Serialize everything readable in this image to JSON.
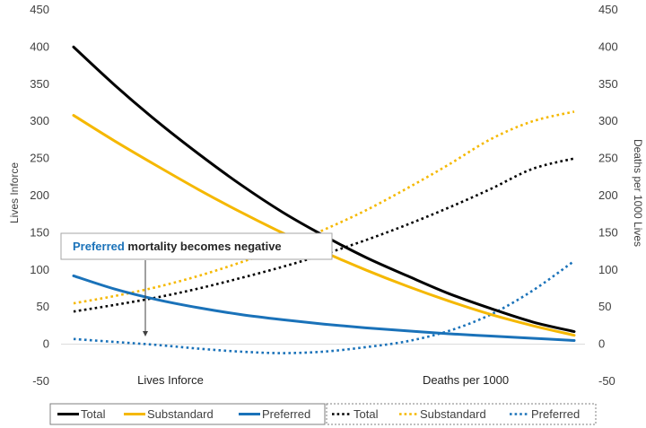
{
  "chart_data": {
    "type": "line",
    "title": "",
    "y_left_label": "Lives Inforce",
    "y_right_label": "Deaths per 1000 Lives",
    "ylim": [
      -50,
      450
    ],
    "yticks": [
      -50,
      0,
      50,
      100,
      150,
      200,
      250,
      300,
      350,
      400,
      450
    ],
    "x_labels": [
      "Lives Inforce",
      "Deaths per 1000"
    ],
    "grid": false,
    "annotation": {
      "highlight": "Preferred",
      "text": " mortality becomes negative"
    },
    "x": [
      0,
      1,
      2,
      3,
      4,
      5,
      6,
      7,
      8,
      9,
      10,
      11,
      12
    ],
    "series": [
      {
        "name": "Total",
        "axis": "left",
        "style": "solid",
        "color": "#000000",
        "values": [
          400,
          348,
          300,
          256,
          215,
          178,
          146,
          117,
          92,
          68,
          48,
          30,
          17
        ]
      },
      {
        "name": "Substandard",
        "axis": "left",
        "style": "solid",
        "color": "#F5B800",
        "values": [
          308,
          273,
          240,
          208,
          178,
          150,
          124,
          100,
          78,
          58,
          40,
          25,
          12
        ]
      },
      {
        "name": "Preferred",
        "axis": "left",
        "style": "solid",
        "color": "#1A72B9",
        "values": [
          92,
          74,
          60,
          49,
          40,
          33,
          27,
          22,
          18,
          14,
          11,
          8,
          5
        ]
      },
      {
        "name": "Total",
        "axis": "right",
        "style": "dotted",
        "color": "#000000",
        "values": [
          44,
          53,
          63,
          75,
          89,
          104,
          121,
          140,
          161,
          184,
          209,
          236,
          250
        ]
      },
      {
        "name": "Substandard",
        "axis": "right",
        "style": "dotted",
        "color": "#F5B800",
        "values": [
          55,
          65,
          77,
          92,
          110,
          130,
          154,
          180,
          210,
          242,
          276,
          300,
          313
        ]
      },
      {
        "name": "Preferred",
        "axis": "right",
        "style": "dotted",
        "color": "#1A72B9",
        "values": [
          7,
          3,
          -1,
          -6,
          -10,
          -12,
          -10,
          -4,
          4,
          18,
          40,
          72,
          112
        ]
      }
    ]
  }
}
